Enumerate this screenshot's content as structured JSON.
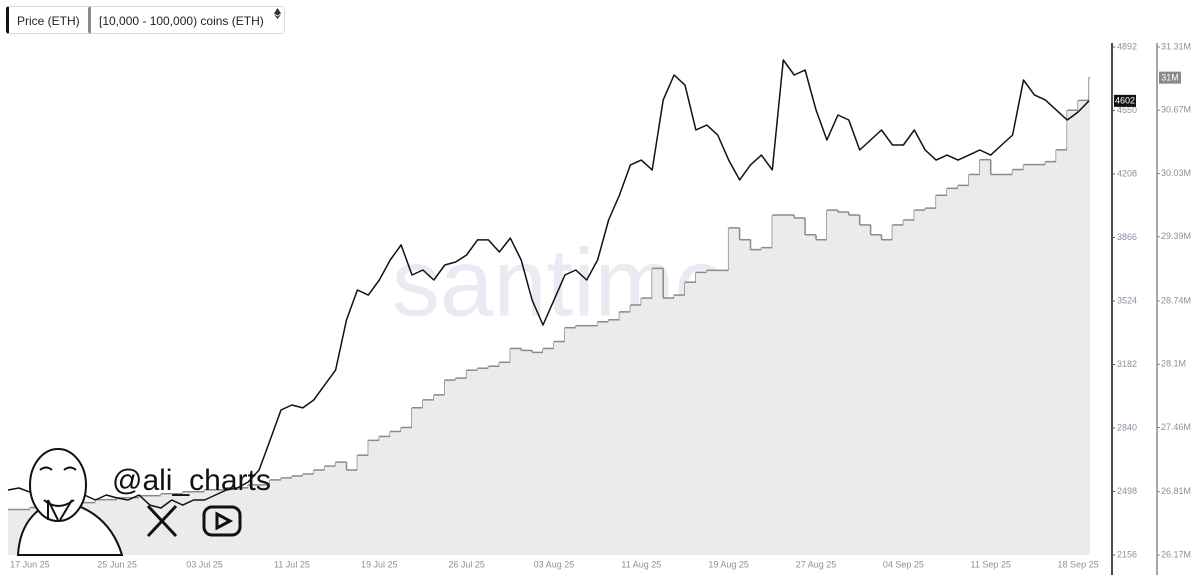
{
  "chart_data": {
    "type": "line",
    "watermark": "santiment",
    "credit": "@ali_charts",
    "categories": [
      null,
      null,
      "17 Jun 25",
      null,
      null,
      null,
      null,
      null,
      null,
      null,
      "25 Jun 25",
      null,
      null,
      null,
      null,
      null,
      null,
      null,
      "03 Jul 25",
      null,
      null,
      null,
      null,
      null,
      null,
      null,
      "11 Jul 25",
      null,
      null,
      null,
      null,
      null,
      null,
      null,
      "19 Jul 25",
      null,
      null,
      null,
      null,
      null,
      null,
      null,
      "26 Jul 25",
      null,
      null,
      null,
      null,
      null,
      null,
      null,
      "03 Aug 25",
      null,
      null,
      null,
      null,
      null,
      null,
      null,
      "11 Aug 25",
      null,
      null,
      null,
      null,
      null,
      null,
      null,
      "19 Aug 25",
      null,
      null,
      null,
      null,
      null,
      null,
      null,
      "27 Aug 25",
      null,
      null,
      null,
      null,
      null,
      null,
      null,
      "04 Sep 25",
      null,
      null,
      null,
      null,
      null,
      null,
      null,
      "11 Sep 25",
      null,
      null,
      null,
      null,
      null,
      null,
      null,
      "18 Sep 25",
      null
    ],
    "series": [
      {
        "name": "Price (ETH)",
        "color": "#111111",
        "axis": "y",
        "values": [
          2506,
          2517,
          2495,
          2479,
          2506,
          2490,
          2495,
          2479,
          2452,
          2479,
          2463,
          2452,
          2479,
          2425,
          2409,
          2452,
          2425,
          2452,
          2452,
          2479,
          2506,
          2517,
          2549,
          2614,
          2775,
          2937,
          2964,
          2948,
          2991,
          3072,
          3152,
          3422,
          3583,
          3556,
          3637,
          3745,
          3826,
          3664,
          3691,
          3637,
          3718,
          3734,
          3772,
          3853,
          3853,
          3788,
          3863,
          3745,
          3529,
          3395,
          3529,
          3664,
          3691,
          3637,
          3745,
          3960,
          4095,
          4257,
          4283,
          4230,
          4607,
          4741,
          4687,
          4445,
          4472,
          4418,
          4283,
          4176,
          4257,
          4310,
          4230,
          4822,
          4741,
          4768,
          4553,
          4391,
          4526,
          4499,
          4337,
          4391,
          4445,
          4364,
          4364,
          4445,
          4337,
          4283,
          4310,
          4283,
          4310,
          4337,
          4310,
          4364,
          4418,
          4714,
          4634,
          4607,
          4553,
          4499,
          4542,
          4602
        ]
      },
      {
        "name": "[10,000 - 100,000) coins (ETH)",
        "color": "#8a8a8a",
        "fill": "#ebebeb",
        "step": true,
        "axis": "y2",
        "values": [
          26630000,
          26630000,
          26650000,
          26650000,
          26680000,
          26680000,
          26700000,
          26700000,
          26730000,
          26730000,
          26750000,
          26750000,
          26770000,
          26770000,
          26790000,
          26790000,
          26810000,
          26810000,
          26830000,
          26830000,
          26850000,
          26850000,
          26880000,
          26880000,
          26930000,
          26950000,
          26970000,
          26990000,
          27030000,
          27070000,
          27110000,
          27030000,
          27180000,
          27330000,
          27370000,
          27420000,
          27460000,
          27660000,
          27740000,
          27790000,
          27940000,
          27960000,
          28040000,
          28060000,
          28080000,
          28120000,
          28260000,
          28240000,
          28220000,
          28260000,
          28330000,
          28470000,
          28490000,
          28490000,
          28530000,
          28550000,
          28630000,
          28700000,
          28770000,
          29070000,
          28770000,
          28800000,
          28930000,
          29030000,
          29050000,
          29050000,
          29480000,
          29360000,
          29260000,
          29280000,
          29610000,
          29610000,
          29580000,
          29410000,
          29360000,
          29660000,
          29640000,
          29610000,
          29510000,
          29410000,
          29360000,
          29510000,
          29560000,
          29660000,
          29680000,
          29810000,
          29880000,
          29910000,
          30020000,
          30170000,
          30020000,
          30020000,
          30070000,
          30120000,
          30120000,
          30150000,
          30270000,
          30670000,
          30770000,
          31000000
        ],
        "value_labels": [
          null,
          null,
          null,
          null,
          null,
          null,
          null,
          null,
          null,
          null,
          null,
          null,
          null,
          null,
          null,
          null,
          null,
          null,
          null,
          null,
          null,
          null,
          null,
          null,
          null,
          null,
          null,
          null,
          null,
          null,
          null,
          null,
          null,
          null,
          null,
          null,
          null,
          null,
          null,
          null,
          null,
          null,
          null,
          null,
          null,
          null,
          null,
          null,
          null,
          null,
          null,
          null,
          null,
          null,
          null,
          null,
          null,
          null,
          null,
          null,
          null,
          null,
          null,
          null,
          null,
          null,
          null,
          null,
          null,
          null,
          null,
          null,
          null,
          null,
          null,
          null,
          null,
          null,
          null,
          null,
          null,
          null,
          null,
          null,
          null,
          null,
          null,
          null,
          null,
          null,
          null,
          null,
          null,
          null,
          null,
          null,
          null,
          null,
          null,
          "31M"
        ]
      }
    ],
    "ylim": [
      2156,
      4892
    ],
    "yticks": [
      2156,
      2498,
      2840,
      3182,
      3524,
      3866,
      4208,
      4550,
      4892
    ],
    "y2lim": [
      26170000,
      31310000
    ],
    "y2ticks": [
      {
        "value": 26170000,
        "label": "26.17M"
      },
      {
        "value": 26810000,
        "label": "26.81M"
      },
      {
        "value": 27460000,
        "label": "27.46M"
      },
      {
        "value": 28100000,
        "label": "28.1M"
      },
      {
        "value": 28740000,
        "label": "28.74M"
      },
      {
        "value": 29390000,
        "label": "29.39M"
      },
      {
        "value": 30030000,
        "label": "30.03M"
      },
      {
        "value": 30670000,
        "label": "30.67M"
      },
      {
        "value": 31310000,
        "label": "31.31M"
      }
    ],
    "grid": false
  }
}
